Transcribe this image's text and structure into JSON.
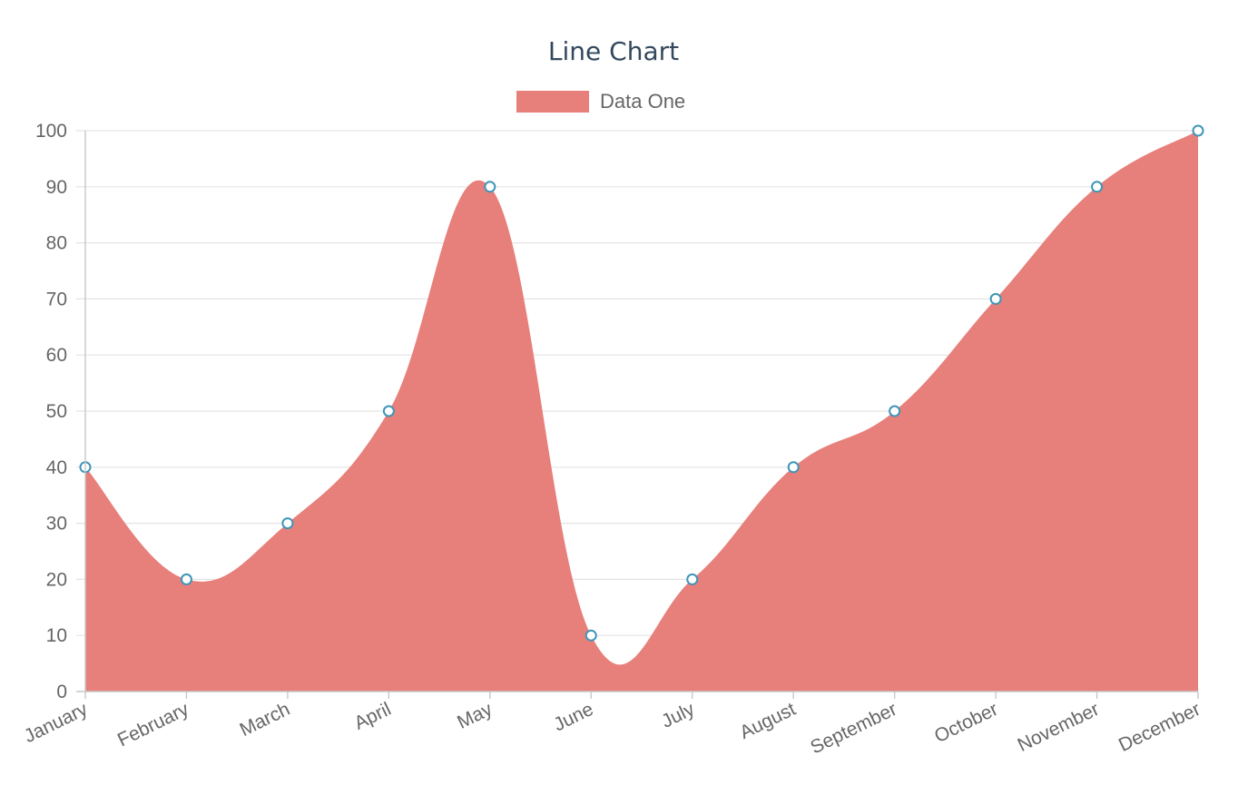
{
  "chart_data": {
    "type": "area",
    "title": "Line Chart",
    "categories": [
      "January",
      "February",
      "March",
      "April",
      "May",
      "June",
      "July",
      "August",
      "September",
      "October",
      "November",
      "December"
    ],
    "series": [
      {
        "name": "Data One",
        "values": [
          40,
          20,
          30,
          50,
          90,
          10,
          20,
          40,
          50,
          70,
          90,
          100
        ],
        "fill_color": "#e77f7b",
        "point_fill": "#ffffff",
        "point_stroke": "#3e95b8"
      }
    ],
    "ylim": [
      0,
      100
    ],
    "yticks": [
      "0",
      "10",
      "20",
      "30",
      "40",
      "50",
      "60",
      "70",
      "80",
      "90",
      "100"
    ],
    "grid": true,
    "legend_position": "top-center",
    "xlabel": "",
    "ylabel": ""
  }
}
